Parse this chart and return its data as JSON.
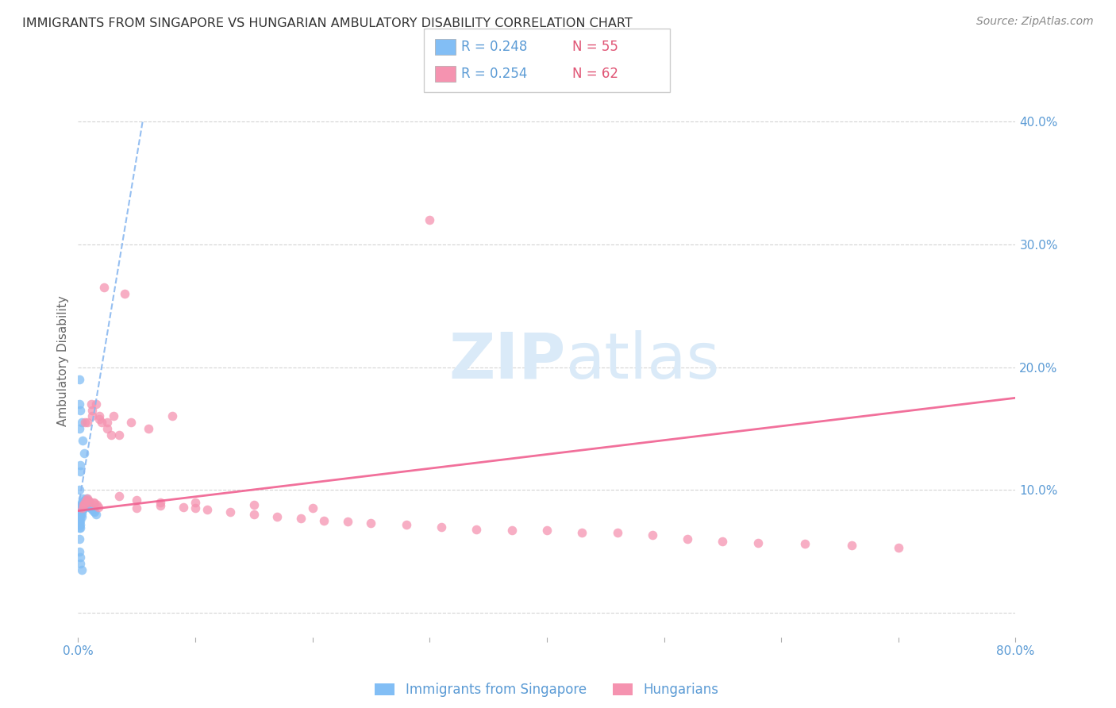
{
  "title": "IMMIGRANTS FROM SINGAPORE VS HUNGARIAN AMBULATORY DISABILITY CORRELATION CHART",
  "source": "Source: ZipAtlas.com",
  "ylabel": "Ambulatory Disability",
  "xlim": [
    0.0,
    0.8
  ],
  "ylim": [
    -0.02,
    0.43
  ],
  "xticks": [
    0.0,
    0.1,
    0.2,
    0.3,
    0.4,
    0.5,
    0.6,
    0.7,
    0.8
  ],
  "xticklabels": [
    "0.0%",
    "",
    "",
    "",
    "",
    "",
    "",
    "",
    "80.0%"
  ],
  "yticks": [
    0.0,
    0.1,
    0.2,
    0.3,
    0.4
  ],
  "series1_label": "Immigrants from Singapore",
  "series2_label": "Hungarians",
  "blue_color": "#82bef5",
  "pink_color": "#f593b0",
  "trend_blue_color": "#8ab8f0",
  "trend_pink_color": "#f06090",
  "axis_tick_color": "#5b9bd5",
  "grid_color": "#d0d0d0",
  "title_color": "#333333",
  "watermark_color": "#daeaf8",
  "legend_box_color": "#e8e8e8",
  "blue_x": [
    0.001,
    0.001,
    0.001,
    0.001,
    0.001,
    0.001,
    0.001,
    0.001,
    0.002,
    0.002,
    0.002,
    0.002,
    0.002,
    0.002,
    0.002,
    0.003,
    0.003,
    0.003,
    0.003,
    0.003,
    0.004,
    0.004,
    0.004,
    0.004,
    0.005,
    0.005,
    0.005,
    0.006,
    0.006,
    0.007,
    0.007,
    0.008,
    0.009,
    0.01,
    0.011,
    0.012,
    0.013,
    0.014,
    0.015,
    0.001,
    0.002,
    0.003,
    0.004,
    0.005,
    0.001,
    0.001,
    0.002,
    0.002,
    0.003,
    0.001,
    0.001,
    0.002,
    0.002,
    0.001
  ],
  "blue_y": [
    0.085,
    0.082,
    0.08,
    0.078,
    0.075,
    0.073,
    0.071,
    0.069,
    0.087,
    0.084,
    0.081,
    0.078,
    0.075,
    0.072,
    0.069,
    0.09,
    0.087,
    0.084,
    0.081,
    0.078,
    0.093,
    0.09,
    0.087,
    0.084,
    0.091,
    0.088,
    0.085,
    0.092,
    0.089,
    0.093,
    0.09,
    0.088,
    0.087,
    0.086,
    0.085,
    0.084,
    0.083,
    0.082,
    0.08,
    0.19,
    0.165,
    0.155,
    0.14,
    0.13,
    0.06,
    0.05,
    0.045,
    0.04,
    0.035,
    0.17,
    0.15,
    0.12,
    0.115,
    0.1
  ],
  "pink_x": [
    0.003,
    0.004,
    0.005,
    0.006,
    0.007,
    0.008,
    0.009,
    0.01,
    0.011,
    0.012,
    0.013,
    0.014,
    0.015,
    0.016,
    0.017,
    0.018,
    0.02,
    0.022,
    0.025,
    0.028,
    0.03,
    0.035,
    0.04,
    0.045,
    0.05,
    0.06,
    0.07,
    0.08,
    0.09,
    0.1,
    0.11,
    0.13,
    0.15,
    0.17,
    0.19,
    0.21,
    0.23,
    0.25,
    0.28,
    0.31,
    0.34,
    0.37,
    0.4,
    0.43,
    0.46,
    0.49,
    0.52,
    0.55,
    0.58,
    0.62,
    0.66,
    0.7,
    0.006,
    0.008,
    0.012,
    0.018,
    0.025,
    0.035,
    0.05,
    0.07,
    0.1,
    0.15,
    0.2,
    0.3
  ],
  "pink_y": [
    0.085,
    0.087,
    0.088,
    0.09,
    0.092,
    0.093,
    0.091,
    0.09,
    0.17,
    0.165,
    0.09,
    0.089,
    0.17,
    0.088,
    0.086,
    0.16,
    0.155,
    0.265,
    0.15,
    0.145,
    0.16,
    0.145,
    0.26,
    0.155,
    0.085,
    0.15,
    0.087,
    0.16,
    0.086,
    0.085,
    0.084,
    0.082,
    0.08,
    0.078,
    0.077,
    0.075,
    0.074,
    0.073,
    0.072,
    0.07,
    0.068,
    0.067,
    0.067,
    0.065,
    0.065,
    0.063,
    0.06,
    0.058,
    0.057,
    0.056,
    0.055,
    0.053,
    0.155,
    0.155,
    0.16,
    0.158,
    0.155,
    0.095,
    0.092,
    0.09,
    0.09,
    0.088,
    0.085,
    0.32
  ]
}
